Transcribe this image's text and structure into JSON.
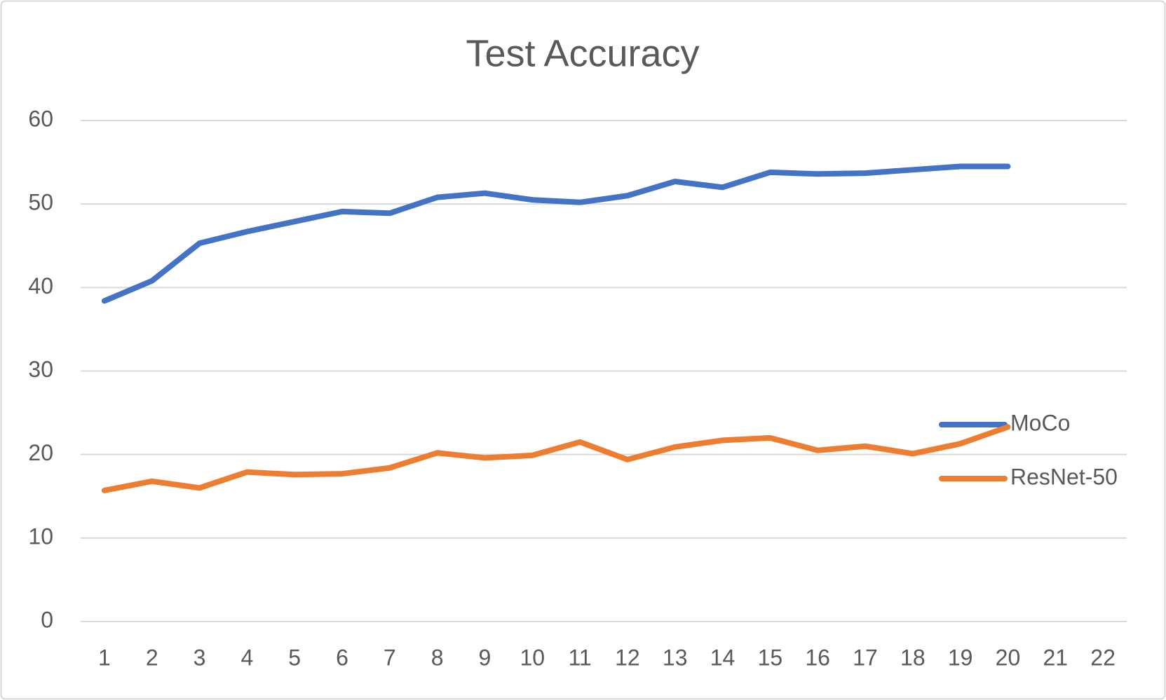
{
  "chart_data": {
    "type": "line",
    "title": "Test Accuracy",
    "categories": [
      "1",
      "2",
      "3",
      "4",
      "5",
      "6",
      "7",
      "8",
      "9",
      "10",
      "11",
      "12",
      "13",
      "14",
      "15",
      "16",
      "17",
      "18",
      "19",
      "20",
      "21",
      "22"
    ],
    "series": [
      {
        "name": "MoCo",
        "color": "#4472c4",
        "values": [
          38.4,
          40.8,
          45.3,
          46.7,
          47.9,
          49.1,
          48.9,
          50.8,
          51.3,
          50.5,
          50.2,
          51.0,
          52.7,
          52.0,
          53.8,
          53.6,
          53.7,
          54.1,
          54.5,
          54.5,
          null,
          null
        ]
      },
      {
        "name": "ResNet-50",
        "color": "#ed7d31",
        "values": [
          15.7,
          16.8,
          16.0,
          17.9,
          17.6,
          17.7,
          18.4,
          20.2,
          19.6,
          19.9,
          21.5,
          19.4,
          20.9,
          21.7,
          22.0,
          20.5,
          21.0,
          20.1,
          21.3,
          23.3,
          null,
          null
        ]
      }
    ],
    "ylim": [
      0,
      60
    ],
    "yticks": [
      0,
      10,
      20,
      30,
      40,
      50,
      60
    ],
    "grid": true,
    "legend": "right"
  }
}
